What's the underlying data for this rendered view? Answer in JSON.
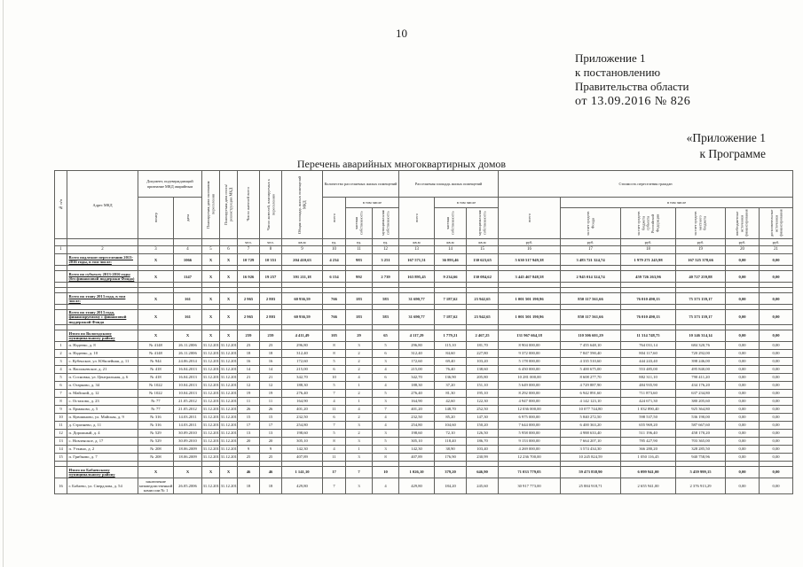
{
  "page": {
    "number": "10",
    "appendix_lines": [
      "Приложение 1",
      "к постановлению",
      "Правительства области",
      "от  13.09.2016  № 826"
    ],
    "program_lines": [
      "«Приложение 1",
      "к Программе"
    ],
    "table_title": "Перечень аварийных многоквартирных домов"
  },
  "table": {
    "header": {
      "npp": "№ п/п",
      "address": "Адрес МКД",
      "doc_group": "Документ, подтверждающий признание МКД аварийным",
      "doc_number": "номер",
      "doc_date": "дата",
      "resettle_deadline": "Планируемая дата окончания переселения",
      "demolition_date": "Планируемая дата сноса/реконструкции МКД",
      "residents_total": "Число жителей всего",
      "residents_resettled": "Число жителей, планируемых к переселению",
      "total_area": "Общая площадь жилых помещений МКД",
      "units_group": "Количество расселяемых жилых помещений",
      "area_group": "Расселяемая площадь жилых помещений",
      "cost_group": "Стоимость переселения граждан",
      "total": "всего",
      "including": "в том числе",
      "private_own": "частная собственность",
      "municipal_own": "муниципальная собственность",
      "fund": "за счет средств Фонда",
      "region_budget": "за счет средств бюджета субъекта Российской Федерации",
      "local_budget": "за счет средств местного бюджета",
      "extra_sources": "внебюджетные источники финансирования",
      "add_sources": "дополнительные источники финансирования"
    },
    "units_row": [
      "",
      "",
      "",
      "",
      "",
      "",
      "чел.",
      "чел.",
      "кв.м",
      "ед.",
      "ед.",
      "ед.",
      "кв.м",
      "кв.м",
      "кв.м",
      "руб.",
      "руб.",
      "руб.",
      "руб.",
      "руб.",
      "руб."
    ],
    "col_numbers": [
      "1",
      "2",
      "3",
      "4",
      "5",
      "6",
      "7",
      "8",
      "9",
      "10",
      "11",
      "12",
      "13",
      "14",
      "15",
      "16",
      "17",
      "18",
      "19",
      "20",
      "21"
    ],
    "rows": [
      {
        "type": "section",
        "label": "Всего подлежит переселению 2013-2016 годы, в том числе:",
        "cells": [
          "Х",
          "1066",
          "Х",
          "Х",
          "10 729",
          "10 351",
          "204 410,63",
          "4 234",
          "983",
          "3 251",
          "167 571,51",
          "36 893,46",
          "130 623,65",
          "5 630 517 949,38",
          "3 483 721 324,74",
          "1 979 271 245,98",
          "167 525 378,66",
          "0,00",
          "0,00"
        ]
      },
      {
        "type": "spacer"
      },
      {
        "type": "section",
        "label": "Всего по субъекту 2013-2016 годы (без финансовой поддержки Фонда)",
        "cells": [
          "Х",
          "1147",
          "Х",
          "Х",
          "16 926",
          "19 257",
          "391 211,18",
          "6 154",
          "992",
          "2 739",
          "163 895,45",
          "9 234,66",
          "130 084,62",
          "3 445 467 848,58",
          "2 945 014 324,74",
          "459 726 263,96",
          "40 727 259,88",
          "0,00",
          "0,00"
        ]
      },
      {
        "type": "spacer"
      },
      {
        "type": "spacer"
      },
      {
        "type": "section",
        "label": "Всего по этапу 2013 года, в том числе:",
        "cells": [
          "Х",
          "161",
          "Х",
          "Х",
          "2 965",
          "2 803",
          "60 936,59",
          "766",
          "183",
          "583",
          "31 690,77",
          "7 187,62",
          "23 942,65",
          "1 001 501 190,96",
          "850 117 561,66",
          "76 010 490,13",
          "75 373 139,17",
          "0,00",
          "0,00"
        ]
      },
      {
        "type": "spacer"
      },
      {
        "type": "section",
        "label": "Всего по этапу 2013 года, финансируемому с финансовой поддержкой Фонда",
        "cells": [
          "Х",
          "161",
          "Х",
          "Х",
          "2 965",
          "2 803",
          "60 936,59",
          "766",
          "183",
          "583",
          "31 690,77",
          "7 187,62",
          "23 942,65",
          "1 001 501 190,96",
          "850 117 561,66",
          "76 010 490,13",
          "75 373 139,17",
          "0,00",
          "0,00"
        ]
      },
      {
        "type": "spacer"
      },
      {
        "type": "section",
        "label": "Итого по Вологодскому муниципальному району",
        "cells": [
          "Х",
          "Х",
          "Х",
          "Х",
          "259",
          "259",
          "4 411,49",
          "105",
          "29",
          "65",
          "4 117,29",
          "1 779,21",
          "2 467,25",
          "131 967 664,18",
          "110 506 601,29",
          "11 314 748,75",
          "10 146 314,14",
          "0,00",
          "0,00"
        ]
      },
      {
        "type": "body",
        "cells": [
          "1",
          "п. Надеево, д. 8",
          "№ 4148",
          "26.11.2006",
          "31.12.2015",
          "31.12.2016",
          "23",
          "23",
          "296,80",
          "8",
          "3",
          "5",
          "296,80",
          "115,10",
          "181,70",
          "8 904 000,00",
          "7 455 648,10",
          "764 031,14",
          "684 320,76",
          "0,00",
          "0,00"
        ]
      },
      {
        "type": "body",
        "cells": [
          "2",
          "п. Надеево, д. 10",
          "№ 4148",
          "26.11.2006",
          "31.12.2015",
          "31.12.2016",
          "18",
          "18",
          "312,40",
          "8",
          "2",
          "6",
          "312,40",
          "84,60",
          "227,80",
          "9 372 000,00",
          "7 847 590,40",
          "804 117,60",
          "720 292,00",
          "0,00",
          "0,00"
        ]
      },
      {
        "type": "body",
        "cells": [
          "3",
          "с. Кубенское, ул. Юбилейная, д. 11",
          "№ 944",
          "24.06.2014",
          "31.12.2015",
          "31.12.2016",
          "16",
          "16",
          "172,60",
          "5",
          "2",
          "3",
          "172,60",
          "69,40",
          "103,20",
          "5 178 000,00",
          "4 335 510,60",
          "444 243,40",
          "398 246,00",
          "0,00",
          "0,00"
        ]
      },
      {
        "type": "body",
        "cells": [
          "4",
          "п. Васильевское, д. 21",
          "№ 418",
          "16.04.2013",
          "31.12.2015",
          "31.12.2016",
          "14",
          "14",
          "215,00",
          "6",
          "2",
          "4",
          "215,00",
          "76,40",
          "138,60",
          "6 450 000,00",
          "5 400 675,00",
          "553 485,00",
          "495 840,00",
          "0,00",
          "0,00"
        ]
      },
      {
        "type": "body",
        "cells": [
          "5",
          "п. Сосновка, ул. Центральная, д. 6",
          "№ 418",
          "16.04.2013",
          "31.12.2015",
          "31.12.2016",
          "21",
          "21",
          "342,70",
          "10",
          "4",
          "6",
          "342,70",
          "136,90",
          "205,80",
          "10 281 000,00",
          "8 608 277,70",
          "882 311,10",
          "790 411,20",
          "0,00",
          "0,00"
        ]
      },
      {
        "type": "body",
        "cells": [
          "6",
          "п. Огарково, д. 34",
          "№ 1022",
          "10.04.2013",
          "31.12.2015",
          "31.12.2016",
          "12",
          "12",
          "188,30",
          "5",
          "1",
          "4",
          "188,30",
          "37,20",
          "151,10",
          "5 649 000,00",
          "4 729 887,90",
          "484 935,90",
          "434 176,20",
          "0,00",
          "0,00"
        ]
      },
      {
        "type": "body",
        "cells": [
          "7",
          "п. Майский, д. 12",
          "№ 1022",
          "10.04.2013",
          "31.12.2015",
          "31.12.2016",
          "19",
          "19",
          "276,40",
          "7",
          "2",
          "5",
          "276,40",
          "81,30",
          "195,10",
          "8 292 000,00",
          "6 942 891,60",
          "711 873,60",
          "637 234,80",
          "0,00",
          "0,00"
        ]
      },
      {
        "type": "body",
        "cells": [
          "8",
          "с. Остахово, д. 23",
          "№ 77",
          "21.05.2012",
          "31.12.2015",
          "31.12.2016",
          "11",
          "11",
          "164,90",
          "4",
          "1",
          "3",
          "164,90",
          "42,60",
          "122,30",
          "4 947 000,00",
          "4 142 123,10",
          "424 671,30",
          "380 205,60",
          "0,00",
          "0,00"
        ]
      },
      {
        "type": "body",
        "cells": [
          "9",
          "п. Ермаково, д. 5",
          "№ 77",
          "21.05.2012",
          "31.12.2015",
          "31.12.2016",
          "26",
          "26",
          "401,20",
          "11",
          "4",
          "7",
          "401,20",
          "148,70",
          "252,50",
          "12 036 000,00",
          "10 077 744,80",
          "1 032 890,40",
          "925 364,80",
          "0,00",
          "0,00"
        ]
      },
      {
        "type": "body",
        "cells": [
          "10",
          "п. Кувшиново, ул. Майская, д. 9",
          "№ 316",
          "14.03.2011",
          "31.12.2015",
          "31.12.2016",
          "15",
          "15",
          "232,50",
          "6",
          "2",
          "4",
          "232,50",
          "85,20",
          "147,30",
          "6 975 000,00",
          "5 840 272,50",
          "598 537,50",
          "536 190,00",
          "0,00",
          "0,00"
        ]
      },
      {
        "type": "body",
        "cells": [
          "11",
          "д. Стризнево, д. 11",
          "№ 316",
          "14.03.2011",
          "31.12.2015",
          "31.12.2016",
          "17",
          "17",
          "254,80",
          "7",
          "3",
          "4",
          "254,80",
          "104,60",
          "150,20",
          "7 644 000,00",
          "6 400 363,20",
          "655 969,20",
          "587 667,60",
          "0,00",
          "0,00"
        ]
      },
      {
        "type": "body",
        "cells": [
          "12",
          "п. Дорожный, д. 4",
          "№ 529",
          "30.09.2010",
          "31.12.2015",
          "31.12.2016",
          "13",
          "13",
          "198,60",
          "5",
          "2",
          "3",
          "198,60",
          "72,10",
          "126,50",
          "5 958 000,00",
          "4 988 633,40",
          "511 196,40",
          "458 170,20",
          "0,00",
          "0,00"
        ]
      },
      {
        "type": "body",
        "cells": [
          "13",
          "с. Новленское, д. 17",
          "№ 529",
          "30.09.2010",
          "31.12.2015",
          "31.12.2016",
          "20",
          "20",
          "305,10",
          "8",
          "3",
          "5",
          "305,10",
          "118,40",
          "186,70",
          "9 153 000,00",
          "7 664 207,10",
          "785 427,90",
          "703 365,00",
          "0,00",
          "0,00"
        ]
      },
      {
        "type": "body",
        "cells": [
          "14",
          "п. Уткино, д. 2",
          "№ 208",
          "18.06.2009",
          "31.12.2015",
          "31.12.2016",
          "9",
          "9",
          "142,30",
          "4",
          "1",
          "3",
          "142,30",
          "38,90",
          "103,40",
          "4 269 000,00",
          "3 574 434,30",
          "366 280,20",
          "328 285,50",
          "0,00",
          "0,00"
        ]
      },
      {
        "type": "body",
        "cells": [
          "15",
          "п. Грибково, д. 7",
          "№ 208",
          "18.06.2009",
          "31.12.2015",
          "31.12.2016",
          "25",
          "25",
          "407,89",
          "11",
          "3",
          "8",
          "407,89",
          "176,90",
          "230,99",
          "12 236 700,00",
          "10 245 824,59",
          "1 050 116,45",
          "940 758,96",
          "0,00",
          "0,00"
        ]
      },
      {
        "type": "spacer"
      },
      {
        "type": "section",
        "label": "Итого по Бабаевскому муниципальному району",
        "cells": [
          "Х",
          "Х",
          "Х",
          "Х",
          "46",
          "46",
          "1 141,10",
          "17",
          "7",
          "10",
          "1 026,10",
          "379,20",
          "646,90",
          "71 033 779,05",
          "59 473 838,90",
          "6 099 941,00",
          "5 459 999,15",
          "0,00",
          "0,00"
        ]
      },
      {
        "type": "last",
        "cells": [
          "16",
          "г. Бабаево, ул. Свердлова, д. 54",
          "заключение межведомственной комиссии № 1",
          "26.05.2006",
          "31.12.2015",
          "31.12.2016",
          "18",
          "18",
          "429,80",
          "7",
          "3",
          "4",
          "429,80",
          "184,20",
          "245,60",
          "30 917 773,00",
          "25 884 918,71",
          "2 655 941,00",
          "2 376 913,29",
          "0,00",
          "0,00"
        ]
      }
    ]
  }
}
